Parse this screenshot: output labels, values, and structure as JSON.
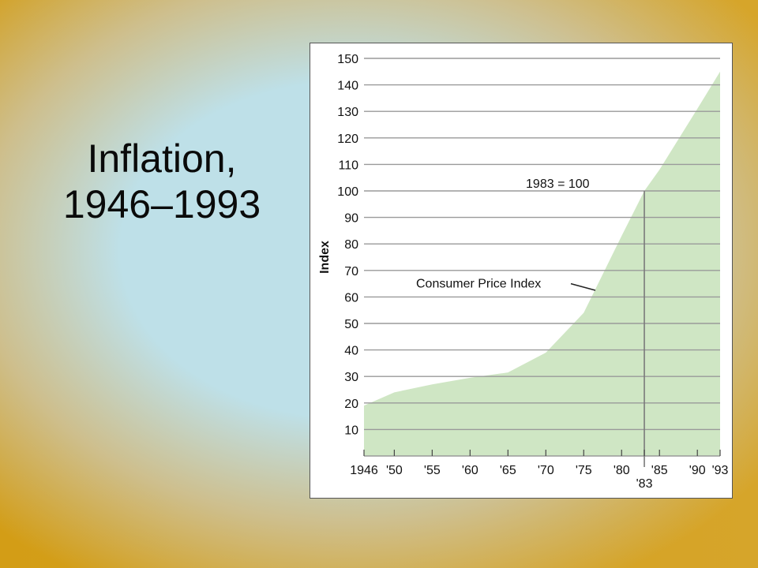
{
  "slide": {
    "title_line1": "Inflation,",
    "title_line2": "1946–1993"
  },
  "colors": {
    "area_fill": "#cfe6c4",
    "grid": "#9a9a9a",
    "marker_line": "#7a7a7a"
  },
  "chart_data": {
    "type": "area",
    "title": "",
    "xlabel": "",
    "ylabel": "Index",
    "ylim": [
      0,
      150
    ],
    "xlim": [
      1946,
      1993
    ],
    "yticks": [
      10,
      20,
      30,
      40,
      50,
      60,
      70,
      80,
      90,
      100,
      110,
      120,
      130,
      140,
      150
    ],
    "xticks": [
      {
        "value": 1946,
        "label": "1946"
      },
      {
        "value": 1950,
        "label": "'50"
      },
      {
        "value": 1955,
        "label": "'55"
      },
      {
        "value": 1960,
        "label": "'60"
      },
      {
        "value": 1965,
        "label": "'65"
      },
      {
        "value": 1970,
        "label": "'70"
      },
      {
        "value": 1975,
        "label": "'75"
      },
      {
        "value": 1980,
        "label": "'80"
      },
      {
        "value": 1985,
        "label": "'85"
      },
      {
        "value": 1990,
        "label": "'90"
      },
      {
        "value": 1993,
        "label": "'93"
      }
    ],
    "marker": {
      "value": 1983,
      "label": "'83"
    },
    "grid": true,
    "series": [
      {
        "x": [
          1946,
          1950,
          1955,
          1960,
          1965,
          1970,
          1975,
          1980,
          1983,
          1985,
          1990,
          1993
        ],
        "values": [
          19,
          24,
          27,
          29.5,
          31.5,
          39,
          54,
          83,
          100,
          108,
          131,
          145
        ]
      }
    ],
    "annotations": [
      {
        "text": "1983 = 100"
      },
      {
        "text": "Consumer Price Index"
      }
    ]
  }
}
